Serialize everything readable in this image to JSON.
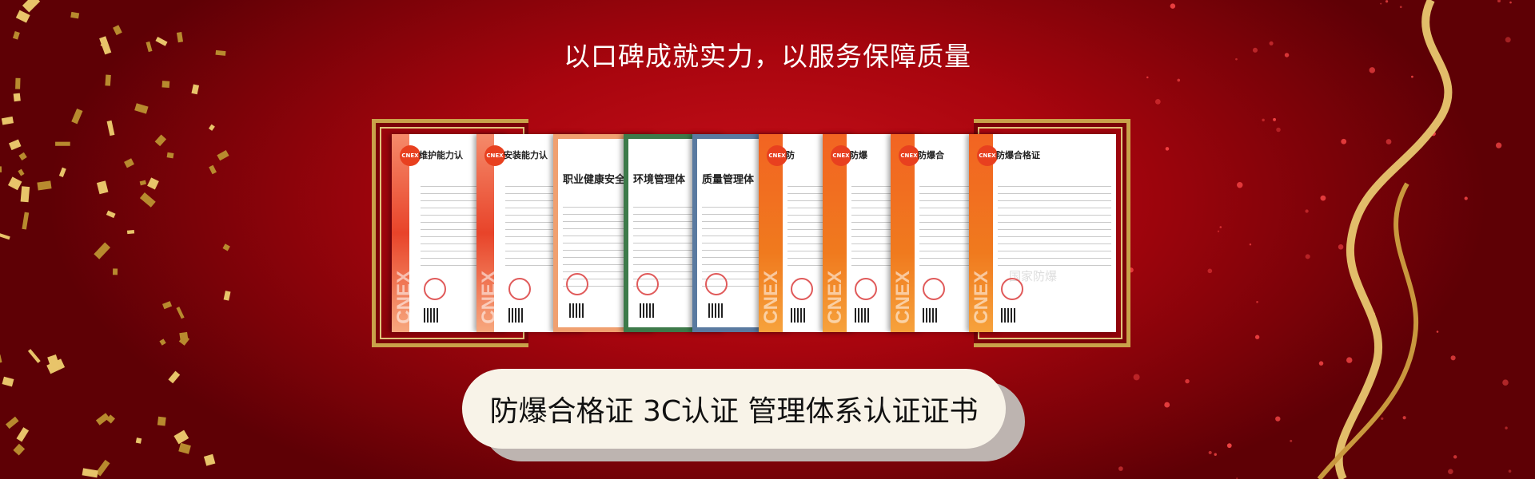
{
  "headline": "以口碑成就实力，以服务保障质量",
  "certificates": [
    {
      "title": "维护能力认",
      "logo": "CNEX",
      "side": "CNEX",
      "style": "pink"
    },
    {
      "title": "安装能力认",
      "logo": "CNEX",
      "side": "CNEX",
      "style": "pink"
    },
    {
      "title": "职业健康安全管",
      "style": "peach"
    },
    {
      "title": "环境管理体",
      "style": "green"
    },
    {
      "title": "质量管理体",
      "style": "blue"
    },
    {
      "title": "防",
      "logo": "CNEX",
      "side": "CNEX",
      "style": "orange"
    },
    {
      "title": "防爆",
      "logo": "CNEX",
      "side": "CNEX",
      "style": "orange"
    },
    {
      "title": "防爆合",
      "logo": "CNEX",
      "side": "CNEX",
      "style": "orange"
    },
    {
      "title": "防爆合格证",
      "logo": "CNEX",
      "side": "CNEX",
      "watermark": "国家防爆",
      "style": "orange"
    }
  ],
  "caption": "防爆合格证 3C认证 管理体系认证证书",
  "colors": {
    "background": "#a8050e",
    "gold": "#d9b25a",
    "pill": "#f8f3e8"
  }
}
